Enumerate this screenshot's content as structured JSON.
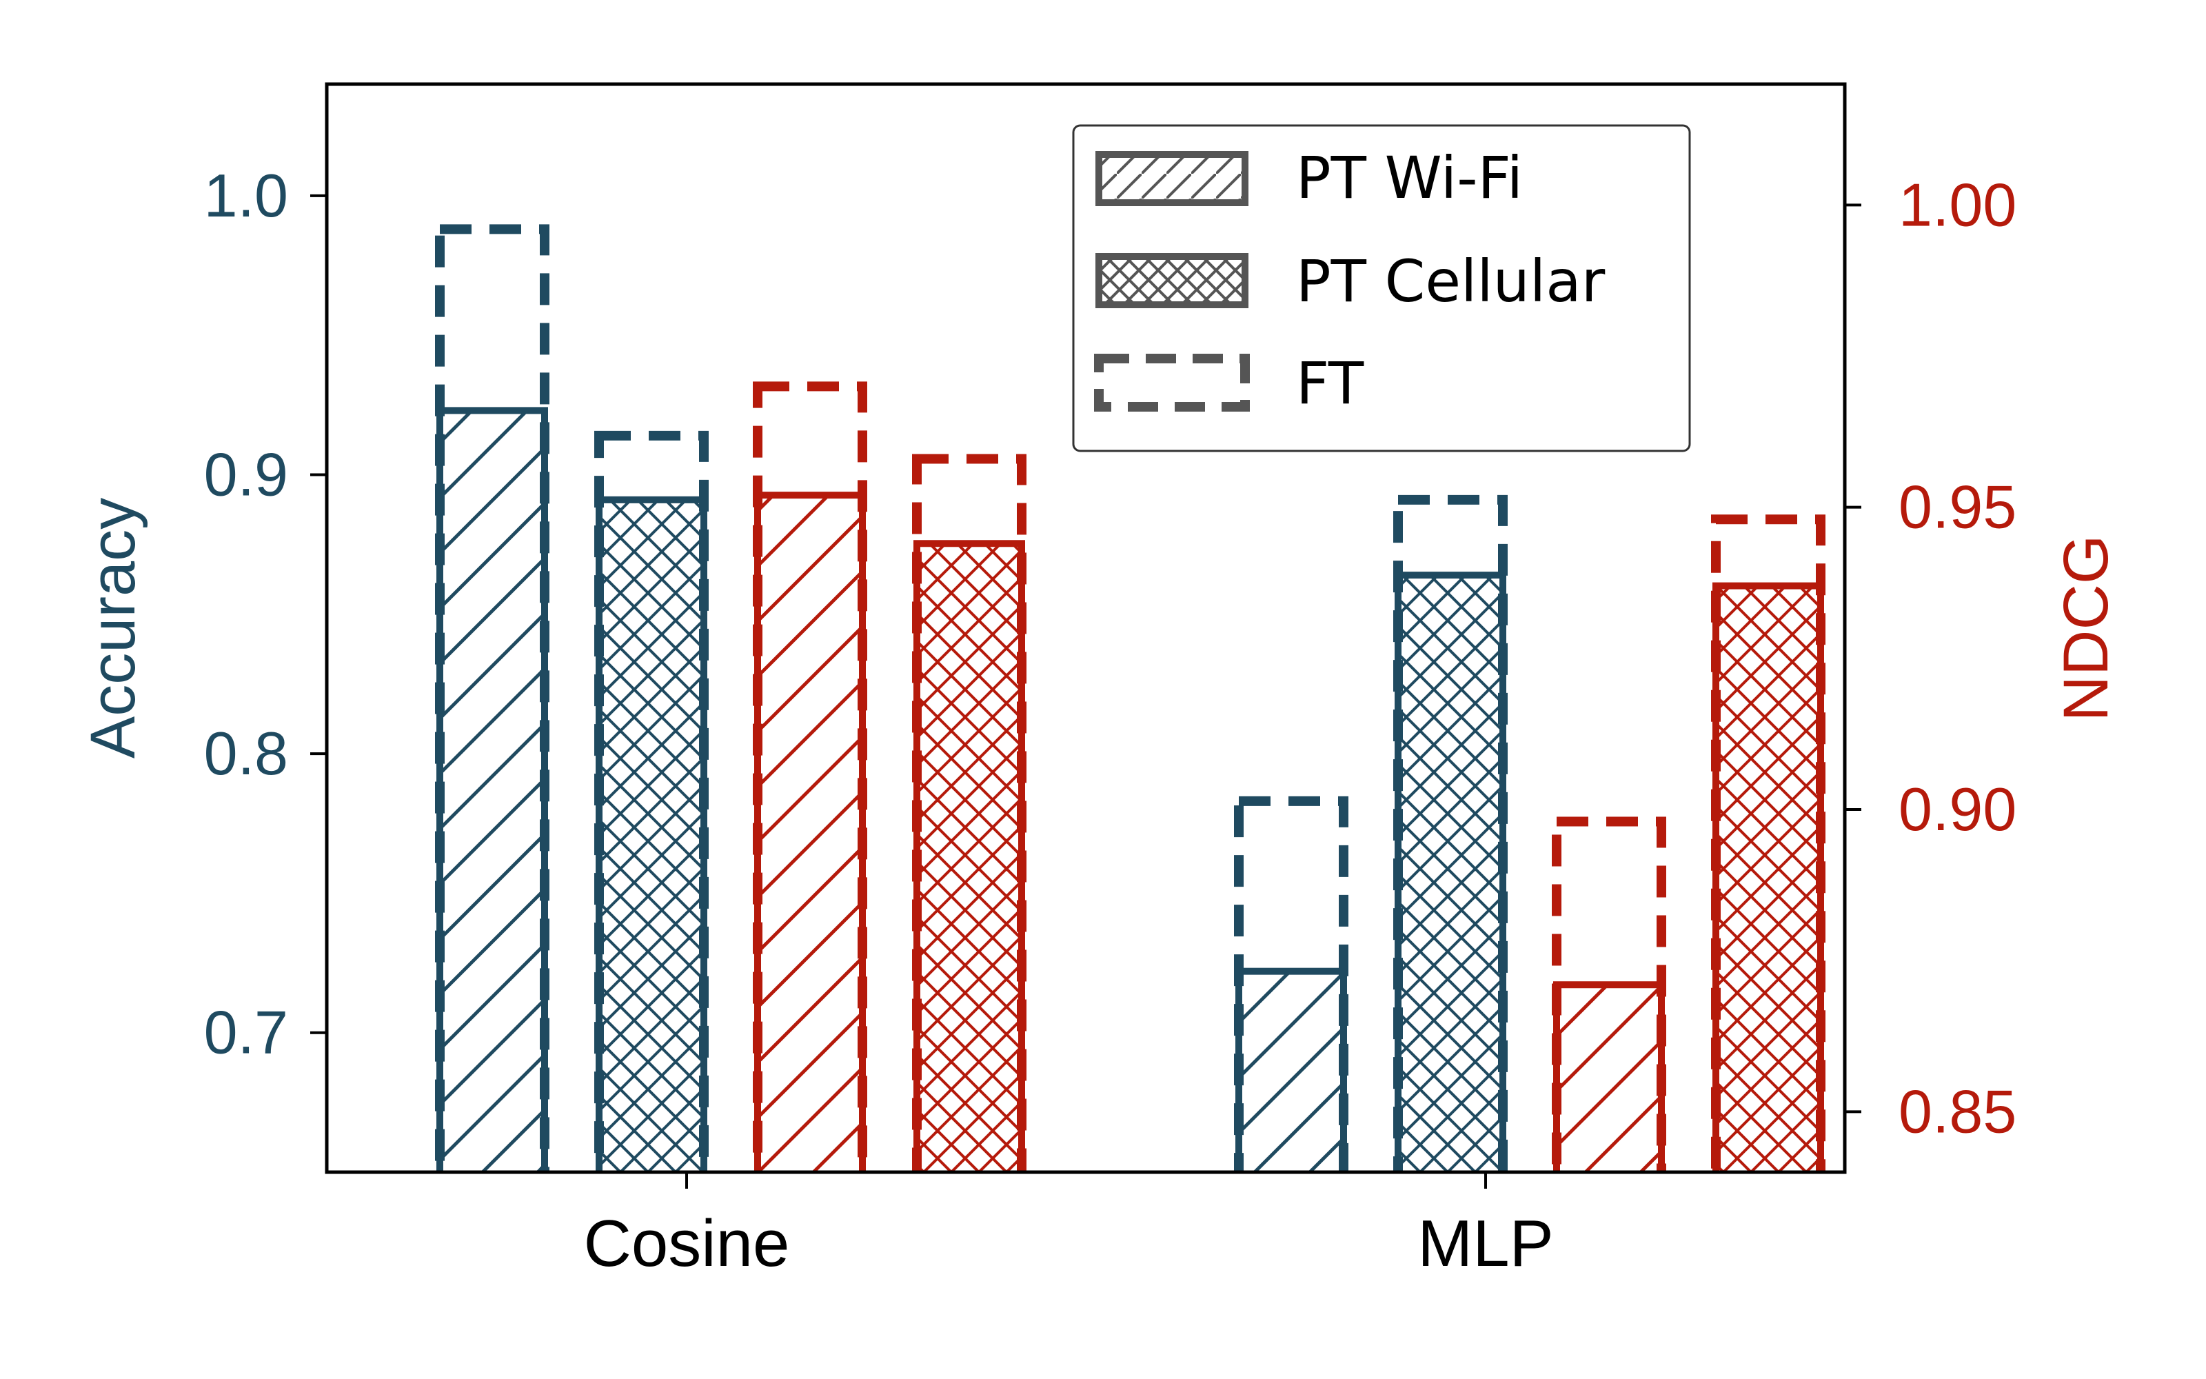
{
  "chart_data": {
    "type": "bar",
    "categories": [
      "Cosine",
      "MLP"
    ],
    "left_axis": {
      "label": "Accuracy",
      "ylim": [
        0.65,
        1.04
      ],
      "ticks": [
        0.7,
        0.8,
        0.9,
        1.0
      ],
      "tick_labels": [
        "0.7",
        "0.8",
        "0.9",
        "1.0"
      ],
      "color": "#1f4a60"
    },
    "right_axis": {
      "label": "NDCG",
      "ylim": [
        0.84,
        1.02
      ],
      "ticks": [
        0.85,
        0.9,
        0.95,
        1.0
      ],
      "tick_labels": [
        "0.85",
        "0.90",
        "0.95",
        "1.00"
      ],
      "color": "#b51a0b"
    },
    "groups": [
      {
        "category": "Cosine",
        "bars": [
          {
            "metric": "Accuracy",
            "axis": "left",
            "hatch": "diagonal",
            "pt": 0.923,
            "ft": 0.988
          },
          {
            "metric": "Accuracy",
            "axis": "left",
            "hatch": "cross",
            "pt": 0.891,
            "ft": 0.914
          },
          {
            "metric": "NDCG",
            "axis": "right",
            "hatch": "diagonal",
            "pt": 0.952,
            "ft": 0.97
          },
          {
            "metric": "NDCG",
            "axis": "right",
            "hatch": "cross",
            "pt": 0.944,
            "ft": 0.958
          }
        ]
      },
      {
        "category": "MLP",
        "bars": [
          {
            "metric": "Accuracy",
            "axis": "left",
            "hatch": "diagonal",
            "pt": 0.722,
            "ft": 0.783
          },
          {
            "metric": "Accuracy",
            "axis": "left",
            "hatch": "cross",
            "pt": 0.864,
            "ft": 0.891
          },
          {
            "metric": "NDCG",
            "axis": "right",
            "hatch": "diagonal",
            "pt": 0.871,
            "ft": 0.898
          },
          {
            "metric": "NDCG",
            "axis": "right",
            "hatch": "cross",
            "pt": 0.937,
            "ft": 0.948
          }
        ]
      }
    ],
    "legend": {
      "placement": "top-right",
      "entries": [
        {
          "label": "PT Wi-Fi",
          "style": "diagonal-hatch"
        },
        {
          "label": "PT Cellular",
          "style": "cross-hatch"
        },
        {
          "label": "FT",
          "style": "dashed-outline"
        }
      ],
      "color": "#555555"
    },
    "grid": false
  }
}
